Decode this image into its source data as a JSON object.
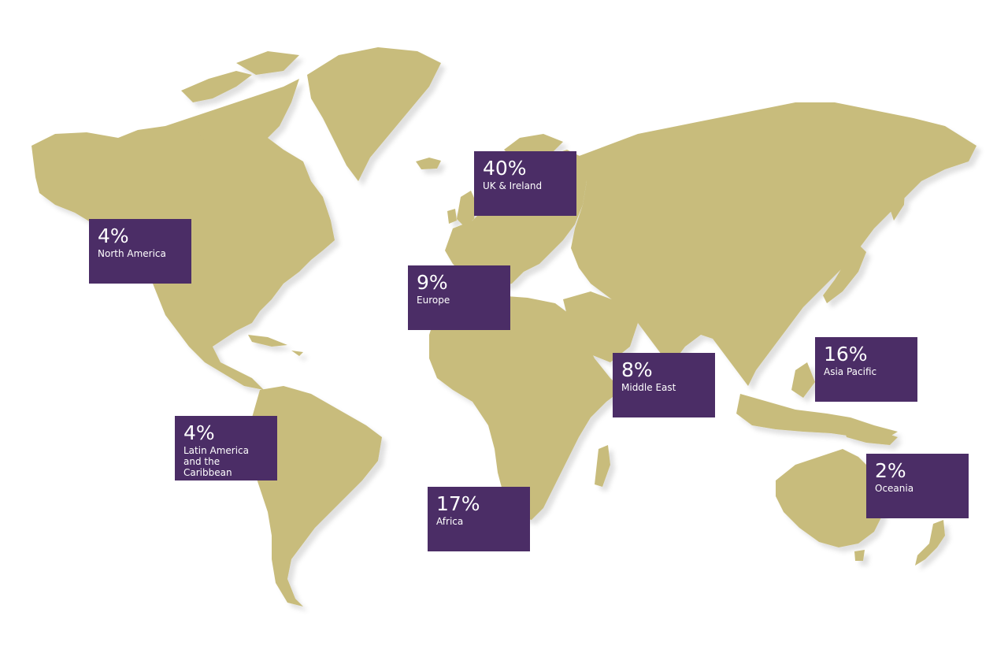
{
  "colors": {
    "land": "#c8bc7c",
    "land_shadow": "#e8e6e0",
    "box": "#4b2d66",
    "text": "#ffffff",
    "background": "#ffffff"
  },
  "regions": {
    "north_america": {
      "percent": "4%",
      "name": "North America",
      "value": 4
    },
    "uk_ireland": {
      "percent": "40%",
      "name": "UK & Ireland",
      "value": 40
    },
    "europe": {
      "percent": "9%",
      "name": "Europe",
      "value": 9
    },
    "middle_east": {
      "percent": "8%",
      "name": "Middle East",
      "value": 8
    },
    "asia_pacific": {
      "percent": "16%",
      "name": "Asia Pacific",
      "value": 16
    },
    "latin_america": {
      "percent": "4%",
      "name": "Latin America and the Caribbean",
      "value": 4
    },
    "africa": {
      "percent": "17%",
      "name": "Africa",
      "value": 17
    },
    "oceania": {
      "percent": "2%",
      "name": "Oceania",
      "value": 2
    }
  }
}
